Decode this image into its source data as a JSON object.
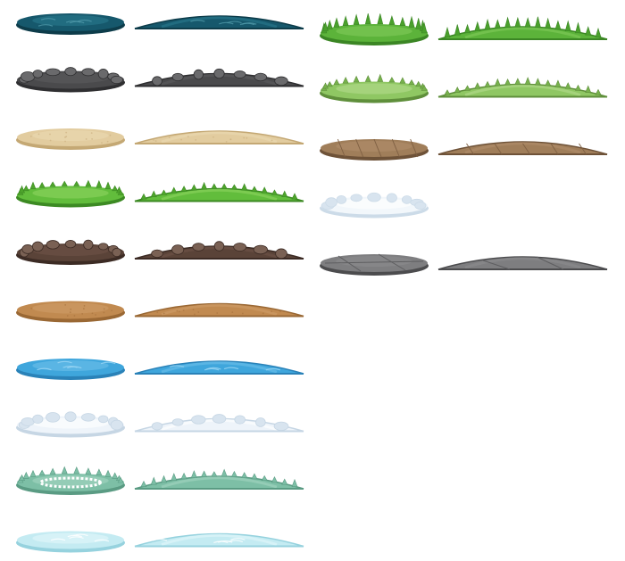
{
  "sheet": {
    "columns": [
      {
        "tiles": [
          {
            "name": "deep-water",
            "top": "#16586c",
            "top_light": "#2a7a8e",
            "edge": "#0d3c4a",
            "deco": "ripples",
            "deco_color": "#4d97a8"
          },
          {
            "name": "dark-stone",
            "top": "#4a4a4c",
            "top_light": "#5c5c5e",
            "edge": "#2f2f31",
            "deco": "rocks",
            "deco_color": "#6a6a6c"
          },
          {
            "name": "sand",
            "top": "#e2cc9f",
            "top_light": "#ebd9b3",
            "edge": "#c4a874",
            "deco": "speckles",
            "deco_color": "#cdb283"
          },
          {
            "name": "grass",
            "top": "#62bd3c",
            "top_light": "#8ed35f",
            "edge": "#3c8a23",
            "deco": "grass",
            "deco_color": "#4ea42c"
          },
          {
            "name": "dark-dirt",
            "top": "#5a4338",
            "top_light": "#6e5448",
            "edge": "#3c2b24",
            "deco": "rocks",
            "deco_color": "#7a6154"
          },
          {
            "name": "dirt",
            "top": "#c18a50",
            "top_light": "#cf9d68",
            "edge": "#9a6834",
            "deco": "speckles",
            "deco_color": "#a97540"
          },
          {
            "name": "water",
            "top": "#3fa6dc",
            "top_light": "#6cc0ea",
            "edge": "#2a82b8",
            "deco": "ripples",
            "deco_color": "#9ad6f4"
          },
          {
            "name": "snow",
            "top": "#eef4fa",
            "top_light": "#ffffff",
            "edge": "#c6d6e4",
            "deco": "snowballs",
            "deco_color": "#d8e4ef"
          },
          {
            "name": "frosty-grass",
            "top": "#7dbfa6",
            "top_light": "#a3d5c1",
            "edge": "#5a9b83",
            "deco": "frost",
            "deco_color": "#ffffff"
          },
          {
            "name": "ice",
            "top": "#c4ebf2",
            "top_light": "#e2f7fa",
            "edge": "#96d2de",
            "deco": "ripples",
            "deco_color": "#ffffff"
          }
        ]
      },
      {
        "tiles": [
          {
            "name": "tall-grass",
            "top": "#5cb33a",
            "top_light": "#80c95a",
            "edge": "#3b8624",
            "deco": "tallgrass",
            "deco_color": "#4aa02c"
          },
          {
            "name": "olive-grass",
            "top": "#8fc763",
            "top_light": "#b4da8e",
            "edge": "#5f8f3b",
            "deco": "grass",
            "deco_color": "#77b14d"
          },
          {
            "name": "wood-planks",
            "top": "#a07e5a",
            "top_light": "#b08e6a",
            "edge": "#6e5238",
            "deco": "planks",
            "deco_color": "#7f6043"
          },
          {
            "name": "snow-rim",
            "top": "#f2f7fb",
            "top_light": "#ffffff",
            "edge": "#ccdbe8",
            "deco": "snowballs",
            "deco_color": "#d8e4ef",
            "no_side": true
          },
          {
            "name": "stone-slab",
            "top": "#7e7e80",
            "top_light": "#8c8c8e",
            "edge": "#4c4c4e",
            "deco": "slabs",
            "deco_color": "#5e5e60"
          }
        ]
      }
    ]
  }
}
